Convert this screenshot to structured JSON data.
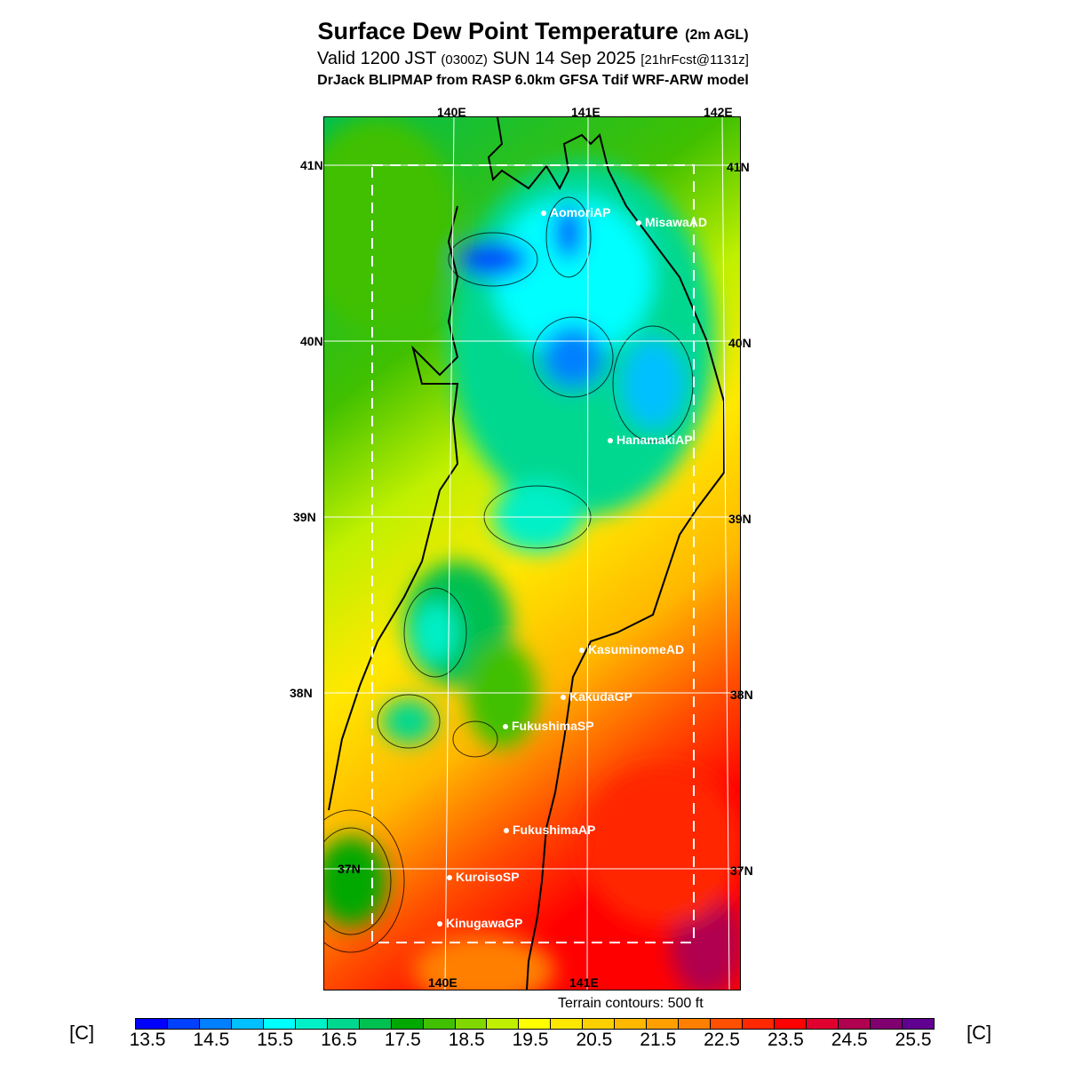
{
  "title": {
    "main": "Surface Dew Point Temperature",
    "main_suffix": "(2m AGL)",
    "line2_a": "Valid 1200 JST",
    "line2_b": "(0300Z)",
    "line2_c": "SUN 14 Sep 2025",
    "line2_d": "[21hrFcst@1131z]",
    "line3": "DrJack BLIPMAP from RASP 6.0km GFSA Tdif WRF-ARW model"
  },
  "axes": {
    "lon_top": [
      "140E",
      "141E",
      "142E"
    ],
    "lon_bottom": [
      "140E",
      "141E"
    ],
    "lat": [
      "41N",
      "40N",
      "39N",
      "38N",
      "37N"
    ]
  },
  "stations": [
    "AomoriAP",
    "MisawaAD",
    "HanamakiAP",
    "KasuminomeAD",
    "KakudaGP",
    "FukushimaSP",
    "FukushimaAP",
    "KuroisoSP",
    "KinugawaGP"
  ],
  "terrain_note": "Terrain contours: 500 ft",
  "colorbar": {
    "unit": "[C]",
    "labels": [
      "13.5",
      "14.5",
      "15.5",
      "16.5",
      "17.5",
      "18.5",
      "19.5",
      "20.5",
      "21.5",
      "22.5",
      "23.5",
      "24.5",
      "25.5"
    ],
    "colors": [
      "#0000ff",
      "#0040ff",
      "#0080ff",
      "#00c0ff",
      "#00ffff",
      "#00f0c8",
      "#00d890",
      "#00c050",
      "#00a800",
      "#40c000",
      "#80d800",
      "#c0f000",
      "#ffff00",
      "#ffe800",
      "#ffd000",
      "#ffb800",
      "#ffa000",
      "#ff8000",
      "#ff5000",
      "#ff2800",
      "#ff0000",
      "#e00030",
      "#b00050",
      "#800070",
      "#600090"
    ]
  }
}
